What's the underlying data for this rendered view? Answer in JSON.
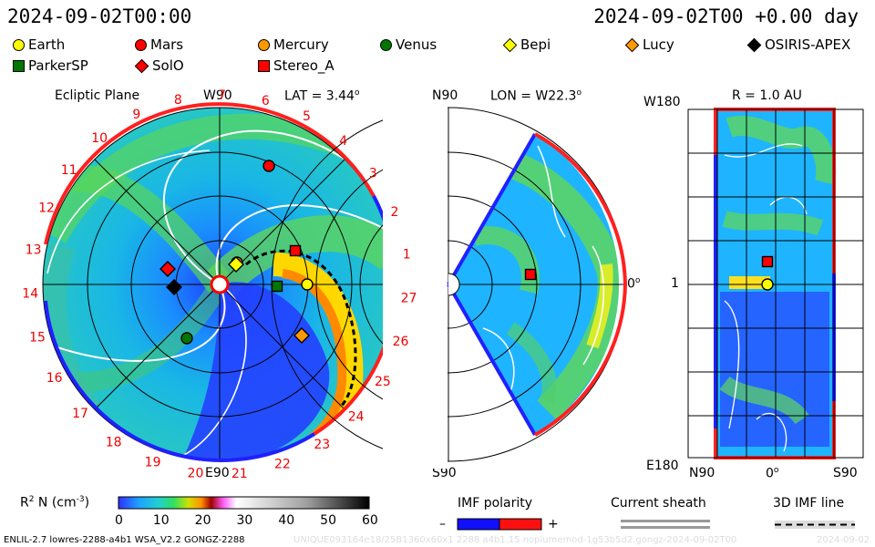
{
  "header": {
    "left_timestamp": "2024-09-02T00:00",
    "right_timestamp": "2024-09-02T00 +0.00 day"
  },
  "legend": [
    {
      "name": "Earth",
      "shape": "circle",
      "color": "#ffff00"
    },
    {
      "name": "Mars",
      "shape": "circle",
      "color": "#ff0000"
    },
    {
      "name": "Mercury",
      "shape": "circle",
      "color": "#ff9900"
    },
    {
      "name": "Venus",
      "shape": "circle",
      "color": "#007700"
    },
    {
      "name": "Bepi",
      "shape": "diamond",
      "color": "#ffff00"
    },
    {
      "name": "Lucy",
      "shape": "diamond",
      "color": "#ff9900"
    },
    {
      "name": "OSIRIS-APEX",
      "shape": "diamond",
      "color": "#000000"
    },
    {
      "name": "ParkerSP",
      "shape": "square",
      "color": "#007700"
    },
    {
      "name": "SolO",
      "shape": "diamond",
      "color": "#ff0000"
    },
    {
      "name": "Stereo_A",
      "shape": "square",
      "color": "#ff0000"
    }
  ],
  "ecliptic_panel": {
    "title": "Ecliptic Plane",
    "w90_label": "W90",
    "lat_label": "LAT = 3.44",
    "degree_mark": "o",
    "zero_label": "0",
    "e90_label": "E90",
    "carrington_numbers": [
      "1",
      "2",
      "3",
      "4",
      "5",
      "6",
      "7",
      "8",
      "9",
      "10",
      "11",
      "12",
      "13",
      "14",
      "15",
      "16",
      "17",
      "18",
      "19",
      "20",
      "21",
      "22",
      "23",
      "24",
      "25",
      "26",
      "27"
    ]
  },
  "meridional_panel": {
    "n90_label": "N90",
    "lon_label": "LON = W22.3",
    "s90_label": "S90",
    "zero_label": "0",
    "degree_mark": "o"
  },
  "sphere_panel": {
    "r_label": "R = 1.0 AU",
    "w180_label": "W180",
    "one_label": "1",
    "e180_label": "E180",
    "n90_label": "N90",
    "zero_label": "0",
    "s90_label": "S90",
    "degree_mark": "o"
  },
  "colorbar": {
    "label": "R",
    "label_sup": "2",
    "label_unit": "N (cm",
    "label_unit_sup": "-3",
    "label_close": ")",
    "ticks": [
      "0",
      "10",
      "20",
      "30",
      "40",
      "50",
      "60"
    ]
  },
  "imf_polarity": {
    "label": "IMF polarity",
    "minus": "–",
    "plus": "+"
  },
  "current_sheath": {
    "label": "Current sheath"
  },
  "imf_line": {
    "label": "3D IMF line"
  },
  "footer": {
    "model_info": "ENLIL-2.7 lowres-2288-a4b1 WSA_V2.2 GONGZ-2288",
    "run_info": "UNIQUE093164e18/25B1360x60x1 2288 a4b1.15 noplumemod-1g53b5d2.gongz-2024-09-02T00",
    "date_info": "2024-09-02"
  }
}
